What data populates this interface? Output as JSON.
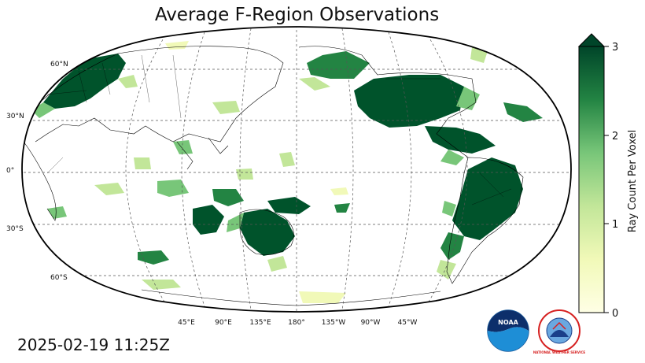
{
  "title": "Average F-Region Observations",
  "timestamp": "2025-02-19 11:25Z",
  "lat_labels": [
    "60°N",
    "30°N",
    "0°",
    "30°S",
    "60°S"
  ],
  "lon_labels": [
    "45°E",
    "90°E",
    "135°E",
    "180°",
    "135°W",
    "90°W",
    "45°W"
  ],
  "colorbar": {
    "label": "Ray Count Per Voxel",
    "ticks": [
      "0",
      "1",
      "2",
      "3"
    ],
    "min": 0,
    "max": 3,
    "extend": "max",
    "colormap": "YlGn",
    "color_low": "#ffffe5",
    "color_mid": "#78c679",
    "color_high": "#004529"
  },
  "logos": {
    "noaa": "NOAA",
    "nws": "NATIONAL WEATHER SERVICE"
  },
  "map": {
    "projection": "Robinson",
    "central_longitude": "180°",
    "gridlines": true,
    "coastlines": true,
    "borders": true
  }
}
